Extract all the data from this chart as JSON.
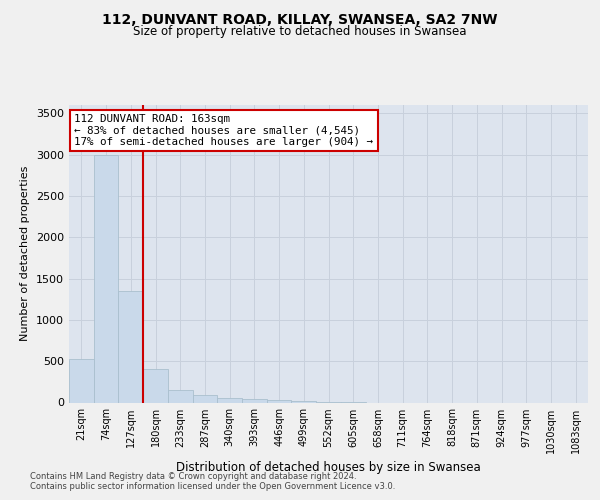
{
  "title_line1": "112, DUNVANT ROAD, KILLAY, SWANSEA, SA2 7NW",
  "title_line2": "Size of property relative to detached houses in Swansea",
  "xlabel": "Distribution of detached houses by size in Swansea",
  "ylabel": "Number of detached properties",
  "footer_line1": "Contains HM Land Registry data © Crown copyright and database right 2024.",
  "footer_line2": "Contains public sector information licensed under the Open Government Licence v3.0.",
  "bin_labels": [
    "21sqm",
    "74sqm",
    "127sqm",
    "180sqm",
    "233sqm",
    "287sqm",
    "340sqm",
    "393sqm",
    "446sqm",
    "499sqm",
    "552sqm",
    "605sqm",
    "658sqm",
    "711sqm",
    "764sqm",
    "818sqm",
    "871sqm",
    "924sqm",
    "977sqm",
    "1030sqm",
    "1083sqm"
  ],
  "bar_values": [
    530,
    3000,
    1350,
    400,
    155,
    85,
    55,
    42,
    30,
    18,
    10,
    5,
    0,
    0,
    0,
    0,
    0,
    0,
    0,
    0,
    0
  ],
  "bar_color": "#c9d9ea",
  "bar_edge_color": "#aabfce",
  "annotation_title": "112 DUNVANT ROAD: 163sqm",
  "annotation_line1": "← 83% of detached houses are smaller (4,545)",
  "annotation_line2": "17% of semi-detached houses are larger (904) →",
  "annotation_box_color": "#ffffff",
  "annotation_box_edge_color": "#cc0000",
  "vline_color": "#cc0000",
  "vline_x": 2.5,
  "ylim": [
    0,
    3600
  ],
  "yticks": [
    0,
    500,
    1000,
    1500,
    2000,
    2500,
    3000,
    3500
  ],
  "grid_color": "#c8d0dc",
  "fig_bg_color": "#f0f0f0",
  "plot_bg_color": "#dde4ee"
}
